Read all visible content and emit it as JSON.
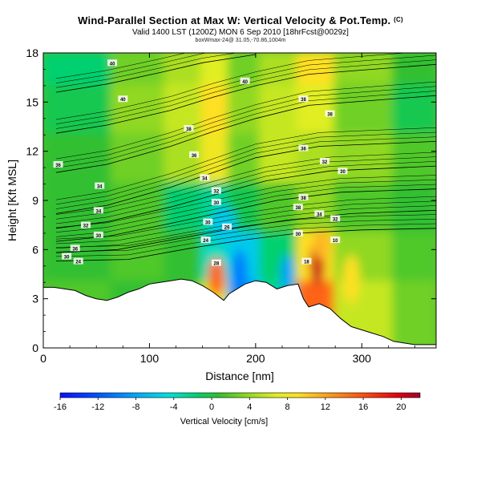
{
  "titles": {
    "main": "Wind-Parallel Section at Max W: Vertical Velocity & Pot.Temp.",
    "copyright": "(C)",
    "valid": "Valid 1400 LST (1200Z) MON 6 Sep 2010 [18hrFcst@0029z]",
    "sub2": "boxWmax-24@ 31.05,-70.86,1004m"
  },
  "chart_data": {
    "type": "heatmap",
    "xlabel": "Distance [nm]",
    "ylabel": "Height [Kft MSL]",
    "xlim": [
      0,
      370
    ],
    "ylim": [
      0,
      18
    ],
    "xticks": [
      "0",
      "100",
      "200",
      "300"
    ],
    "yticks": [
      "0",
      "3",
      "6",
      "9",
      "12",
      "15",
      "18"
    ],
    "colorbar": {
      "label": "Vertical Velocity [cm/s]",
      "range": [
        -16,
        22
      ],
      "ticks": [
        "-16",
        "-12",
        "-8",
        "-4",
        "0",
        "4",
        "8",
        "12",
        "16",
        "20"
      ]
    },
    "terrain_profile": [
      [
        0,
        3.7
      ],
      [
        10,
        3.7
      ],
      [
        20,
        3.6
      ],
      [
        30,
        3.5
      ],
      [
        40,
        3.2
      ],
      [
        50,
        3.0
      ],
      [
        60,
        2.9
      ],
      [
        70,
        3.1
      ],
      [
        80,
        3.4
      ],
      [
        90,
        3.6
      ],
      [
        100,
        3.9
      ],
      [
        110,
        4.0
      ],
      [
        120,
        4.1
      ],
      [
        130,
        4.2
      ],
      [
        140,
        4.1
      ],
      [
        150,
        3.8
      ],
      [
        160,
        3.4
      ],
      [
        170,
        2.9
      ],
      [
        175,
        3.3
      ],
      [
        180,
        3.5
      ],
      [
        190,
        3.9
      ],
      [
        200,
        4.1
      ],
      [
        210,
        4.0
      ],
      [
        220,
        3.6
      ],
      [
        230,
        3.8
      ],
      [
        240,
        3.9
      ],
      [
        245,
        3.0
      ],
      [
        250,
        2.5
      ],
      [
        260,
        2.7
      ],
      [
        270,
        2.4
      ],
      [
        280,
        1.8
      ],
      [
        290,
        1.3
      ],
      [
        300,
        1.1
      ],
      [
        310,
        0.9
      ],
      [
        320,
        0.7
      ],
      [
        330,
        0.4
      ],
      [
        340,
        0.3
      ],
      [
        350,
        0.2
      ],
      [
        360,
        0.2
      ],
      [
        370,
        0.2
      ]
    ],
    "cells": [
      [
        [
          0,
          65,
          16,
          18
        ],
        -2
      ],
      [
        [
          65,
          115,
          16,
          18
        ],
        2
      ],
      [
        [
          115,
          150,
          16,
          18
        ],
        4
      ],
      [
        [
          150,
          175,
          16,
          18
        ],
        6
      ],
      [
        [
          175,
          205,
          16,
          18
        ],
        2
      ],
      [
        [
          205,
          240,
          16,
          18
        ],
        4
      ],
      [
        [
          240,
          275,
          16,
          18
        ],
        8
      ],
      [
        [
          275,
          330,
          16,
          18
        ],
        3
      ],
      [
        [
          330,
          370,
          16,
          18
        ],
        0
      ],
      [
        [
          0,
          65,
          13,
          16
        ],
        -1
      ],
      [
        [
          65,
          115,
          13,
          16
        ],
        3
      ],
      [
        [
          115,
          150,
          13,
          16
        ],
        5
      ],
      [
        [
          150,
          175,
          13,
          16
        ],
        8
      ],
      [
        [
          175,
          205,
          13,
          16
        ],
        3
      ],
      [
        [
          205,
          240,
          13,
          16
        ],
        5
      ],
      [
        [
          240,
          275,
          13,
          16
        ],
        6
      ],
      [
        [
          275,
          330,
          13,
          16
        ],
        2
      ],
      [
        [
          330,
          370,
          13,
          16
        ],
        -1
      ],
      [
        [
          0,
          65,
          10,
          13
        ],
        0
      ],
      [
        [
          65,
          115,
          10,
          13
        ],
        2
      ],
      [
        [
          115,
          150,
          10,
          13
        ],
        4
      ],
      [
        [
          150,
          175,
          10,
          13
        ],
        7
      ],
      [
        [
          175,
          205,
          10,
          13
        ],
        2
      ],
      [
        [
          205,
          240,
          10,
          13
        ],
        5
      ],
      [
        [
          240,
          275,
          10,
          13
        ],
        4
      ],
      [
        [
          275,
          330,
          10,
          13
        ],
        3
      ],
      [
        [
          330,
          370,
          10,
          13
        ],
        1
      ],
      [
        [
          0,
          65,
          7,
          10
        ],
        0
      ],
      [
        [
          65,
          115,
          7,
          10
        ],
        1
      ],
      [
        [
          115,
          150,
          7,
          10
        ],
        -2
      ],
      [
        [
          150,
          175,
          7,
          10
        ],
        -3
      ],
      [
        [
          175,
          205,
          7,
          10
        ],
        -1
      ],
      [
        [
          205,
          240,
          7,
          10
        ],
        1
      ],
      [
        [
          240,
          275,
          7,
          10
        ],
        3
      ],
      [
        [
          275,
          330,
          7,
          10
        ],
        1
      ],
      [
        [
          330,
          370,
          7,
          10
        ],
        0
      ],
      [
        [
          0,
          65,
          4,
          7
        ],
        0
      ],
      [
        [
          65,
          115,
          4,
          7
        ],
        1
      ],
      [
        [
          115,
          150,
          4,
          7
        ],
        0
      ],
      [
        [
          150,
          175,
          4,
          7
        ],
        -4
      ],
      [
        [
          175,
          205,
          4,
          7
        ],
        -6
      ],
      [
        [
          205,
          240,
          4,
          7
        ],
        -2
      ],
      [
        [
          240,
          275,
          4,
          7
        ],
        8
      ],
      [
        [
          275,
          330,
          4,
          7
        ],
        3
      ],
      [
        [
          330,
          370,
          4,
          7
        ],
        1
      ],
      [
        [
          0,
          65,
          0,
          4
        ],
        1
      ],
      [
        [
          65,
          115,
          0,
          4
        ],
        0
      ],
      [
        [
          115,
          150,
          0,
          4
        ],
        0
      ],
      [
        [
          150,
          175,
          0,
          4
        ],
        6
      ],
      [
        [
          175,
          205,
          0,
          4
        ],
        -8
      ],
      [
        [
          205,
          240,
          0,
          4
        ],
        -3
      ],
      [
        [
          240,
          275,
          0,
          4
        ],
        14
      ],
      [
        [
          275,
          330,
          0,
          4
        ],
        5
      ],
      [
        [
          330,
          370,
          0,
          4
        ],
        2
      ]
    ],
    "features": [
      [
        163,
        4.3,
        8,
        1.2,
        14
      ],
      [
        185,
        4.5,
        7,
        1.5,
        -10
      ],
      [
        258,
        5.2,
        7,
        1.4,
        20
      ],
      [
        262,
        6.3,
        8,
        0.9,
        10
      ],
      [
        170,
        7.5,
        12,
        1.2,
        -6
      ],
      [
        290,
        4.2,
        8,
        1.5,
        8
      ],
      [
        230,
        4.5,
        6,
        1.2,
        -8
      ],
      [
        400,
        10,
        1,
        1,
        0
      ]
    ],
    "isentropes": [
      {
        "label": "24",
        "pts": [
          [
            12,
            5.3
          ],
          [
            80,
            5.4
          ],
          [
            140,
            6.1
          ],
          [
            190,
            6.6
          ],
          [
            240,
            7.0
          ],
          [
            300,
            7.2
          ],
          [
            370,
            7.3
          ]
        ]
      },
      {
        "label": "26",
        "pts": [
          [
            12,
            5.8
          ],
          [
            70,
            6.0
          ],
          [
            130,
            6.7
          ],
          [
            180,
            7.3
          ],
          [
            230,
            7.8
          ],
          [
            290,
            8.2
          ],
          [
            370,
            8.4
          ]
        ]
      },
      {
        "label": "30",
        "pts": [
          [
            12,
            6.5
          ],
          [
            60,
            6.8
          ],
          [
            120,
            7.6
          ],
          [
            170,
            8.3
          ],
          [
            220,
            9.0
          ],
          [
            280,
            9.5
          ],
          [
            370,
            9.7
          ]
        ]
      },
      {
        "label": "32",
        "pts": [
          [
            12,
            7.3
          ],
          [
            60,
            7.7
          ],
          [
            120,
            8.6
          ],
          [
            165,
            9.4
          ],
          [
            210,
            10.2
          ],
          [
            270,
            10.8
          ],
          [
            370,
            11.1
          ]
        ]
      },
      {
        "label": "34",
        "pts": [
          [
            12,
            8.2
          ],
          [
            60,
            8.7
          ],
          [
            120,
            9.8
          ],
          [
            160,
            10.7
          ],
          [
            200,
            11.6
          ],
          [
            260,
            12.3
          ],
          [
            370,
            12.6
          ]
        ]
      },
      {
        "label": "36",
        "pts": [
          [
            12,
            10.7
          ],
          [
            60,
            11.2
          ],
          [
            120,
            12.3
          ],
          [
            160,
            13.2
          ],
          [
            200,
            14.0
          ],
          [
            250,
            14.8
          ],
          [
            370,
            15.4
          ]
        ]
      },
      {
        "label": "38",
        "pts": [
          [
            12,
            13.1
          ],
          [
            60,
            13.6
          ],
          [
            120,
            14.5
          ],
          [
            160,
            15.3
          ],
          [
            200,
            16.0
          ],
          [
            250,
            16.7
          ],
          [
            370,
            17.3
          ]
        ]
      },
      {
        "label": "40",
        "pts": [
          [
            12,
            15.6
          ],
          [
            60,
            16.1
          ],
          [
            110,
            16.8
          ],
          [
            150,
            17.4
          ],
          [
            200,
            17.9
          ]
        ]
      }
    ],
    "contour_labels": [
      [
        65,
        17.4,
        "40"
      ],
      [
        75,
        15.2,
        "40"
      ],
      [
        190,
        16.3,
        "40"
      ],
      [
        245,
        15.2,
        "38"
      ],
      [
        270,
        14.3,
        "38"
      ],
      [
        137,
        13.4,
        "38"
      ],
      [
        245,
        12.2,
        "36"
      ],
      [
        14,
        11.2,
        "36"
      ],
      [
        142,
        11.8,
        "36"
      ],
      [
        265,
        11.4,
        "32"
      ],
      [
        282,
        10.8,
        "30"
      ],
      [
        152,
        10.4,
        "34"
      ],
      [
        53,
        9.9,
        "34"
      ],
      [
        163,
        9.6,
        "32"
      ],
      [
        163,
        8.9,
        "30"
      ],
      [
        245,
        9.2,
        "38"
      ],
      [
        240,
        8.6,
        "38"
      ],
      [
        260,
        8.2,
        "34"
      ],
      [
        275,
        7.9,
        "32"
      ],
      [
        52,
        8.4,
        "34"
      ],
      [
        40,
        7.5,
        "32"
      ],
      [
        155,
        7.7,
        "30"
      ],
      [
        173,
        7.4,
        "26"
      ],
      [
        52,
        6.9,
        "30"
      ],
      [
        30,
        6.1,
        "36"
      ],
      [
        153,
        6.6,
        "24"
      ],
      [
        240,
        7.0,
        "30"
      ],
      [
        275,
        6.6,
        "10"
      ],
      [
        22,
        5.6,
        "30"
      ],
      [
        33,
        5.3,
        "24"
      ],
      [
        163,
        5.2,
        "28"
      ],
      [
        248,
        5.3,
        "18"
      ]
    ]
  }
}
